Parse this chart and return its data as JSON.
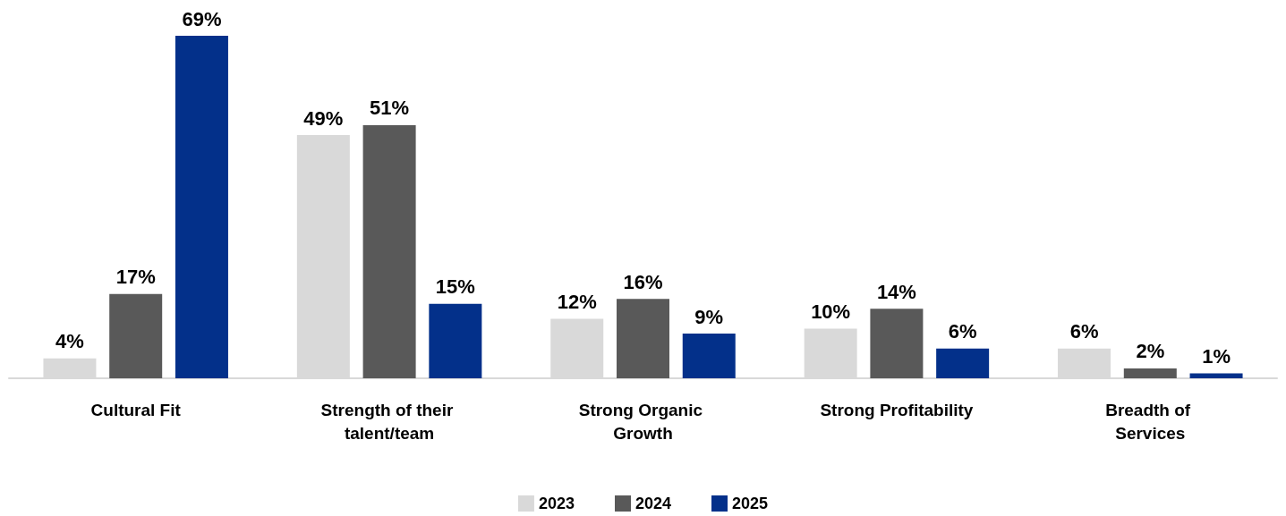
{
  "chart_data": {
    "type": "bar",
    "categories": [
      "Cultural Fit",
      "Strength of their talent/team",
      "Strong Organic Growth",
      "Strong Profitability",
      "Breadth of Services"
    ],
    "series": [
      {
        "name": "2023",
        "color": "#d9d9d9",
        "values": [
          4,
          49,
          12,
          10,
          6
        ],
        "value_labels": [
          "4%",
          "49%",
          "12%",
          "10%",
          "6%"
        ]
      },
      {
        "name": "2024",
        "color": "#595959",
        "values": [
          17,
          51,
          16,
          14,
          2
        ],
        "value_labels": [
          "17%",
          "51%",
          "16%",
          "14%",
          "2%"
        ]
      },
      {
        "name": "2025",
        "color": "#03308a",
        "values": [
          69,
          15,
          9,
          6,
          1
        ],
        "value_labels": [
          "69%",
          "15%",
          "9%",
          "6%",
          "1%"
        ]
      }
    ],
    "legend": "bottom",
    "tick_labels": "x"
  }
}
